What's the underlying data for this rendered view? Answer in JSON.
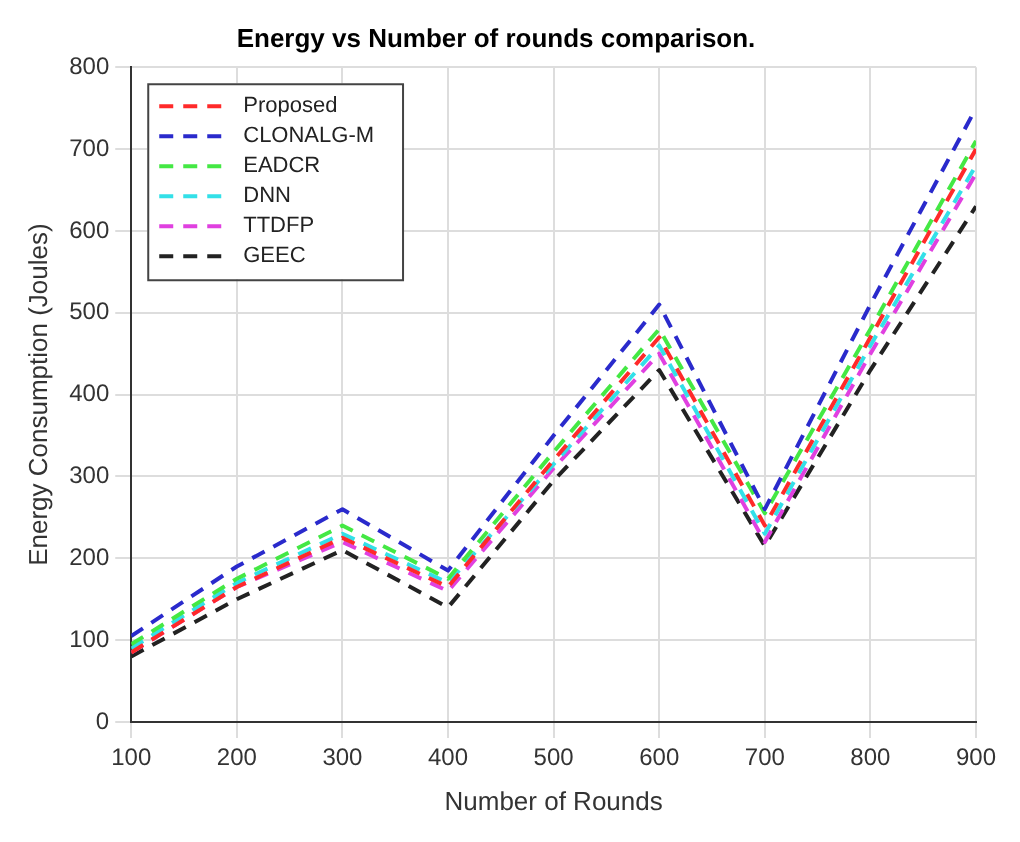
{
  "chart_data": {
    "type": "line",
    "title": "Energy vs Number of rounds comparison.",
    "xlabel": "Number of Rounds",
    "ylabel": "Energy Consumption (Joules)",
    "x": [
      100,
      200,
      300,
      400,
      500,
      600,
      700,
      800,
      900
    ],
    "series": [
      {
        "name": "Proposed",
        "color": "#ff2a2a",
        "values": [
          85,
          165,
          225,
          165,
          320,
          470,
          240,
          470,
          700
        ]
      },
      {
        "name": "CLONALG-M",
        "color": "#2a2acc",
        "values": [
          105,
          190,
          260,
          185,
          350,
          510,
          260,
          510,
          750
        ]
      },
      {
        "name": "EADCR",
        "color": "#44e844",
        "values": [
          95,
          175,
          240,
          175,
          330,
          480,
          255,
          480,
          710
        ]
      },
      {
        "name": "DNN",
        "color": "#33e0e8",
        "values": [
          90,
          170,
          230,
          170,
          315,
          460,
          230,
          460,
          680
        ]
      },
      {
        "name": "TTDFP",
        "color": "#e040e0",
        "values": [
          85,
          165,
          220,
          160,
          310,
          450,
          220,
          450,
          670
        ]
      },
      {
        "name": "GEEC",
        "color": "#222222",
        "values": [
          80,
          150,
          210,
          140,
          295,
          430,
          215,
          430,
          630
        ]
      }
    ],
    "xlim": [
      100,
      900
    ],
    "xticks": [
      100,
      200,
      300,
      400,
      500,
      600,
      700,
      800,
      900
    ],
    "ylim": [
      0,
      800
    ],
    "yticks": [
      0,
      100,
      200,
      300,
      400,
      500,
      600,
      700,
      800
    ],
    "grid": true,
    "legend": "top left",
    "marker": "none",
    "line_style": "dashed"
  }
}
